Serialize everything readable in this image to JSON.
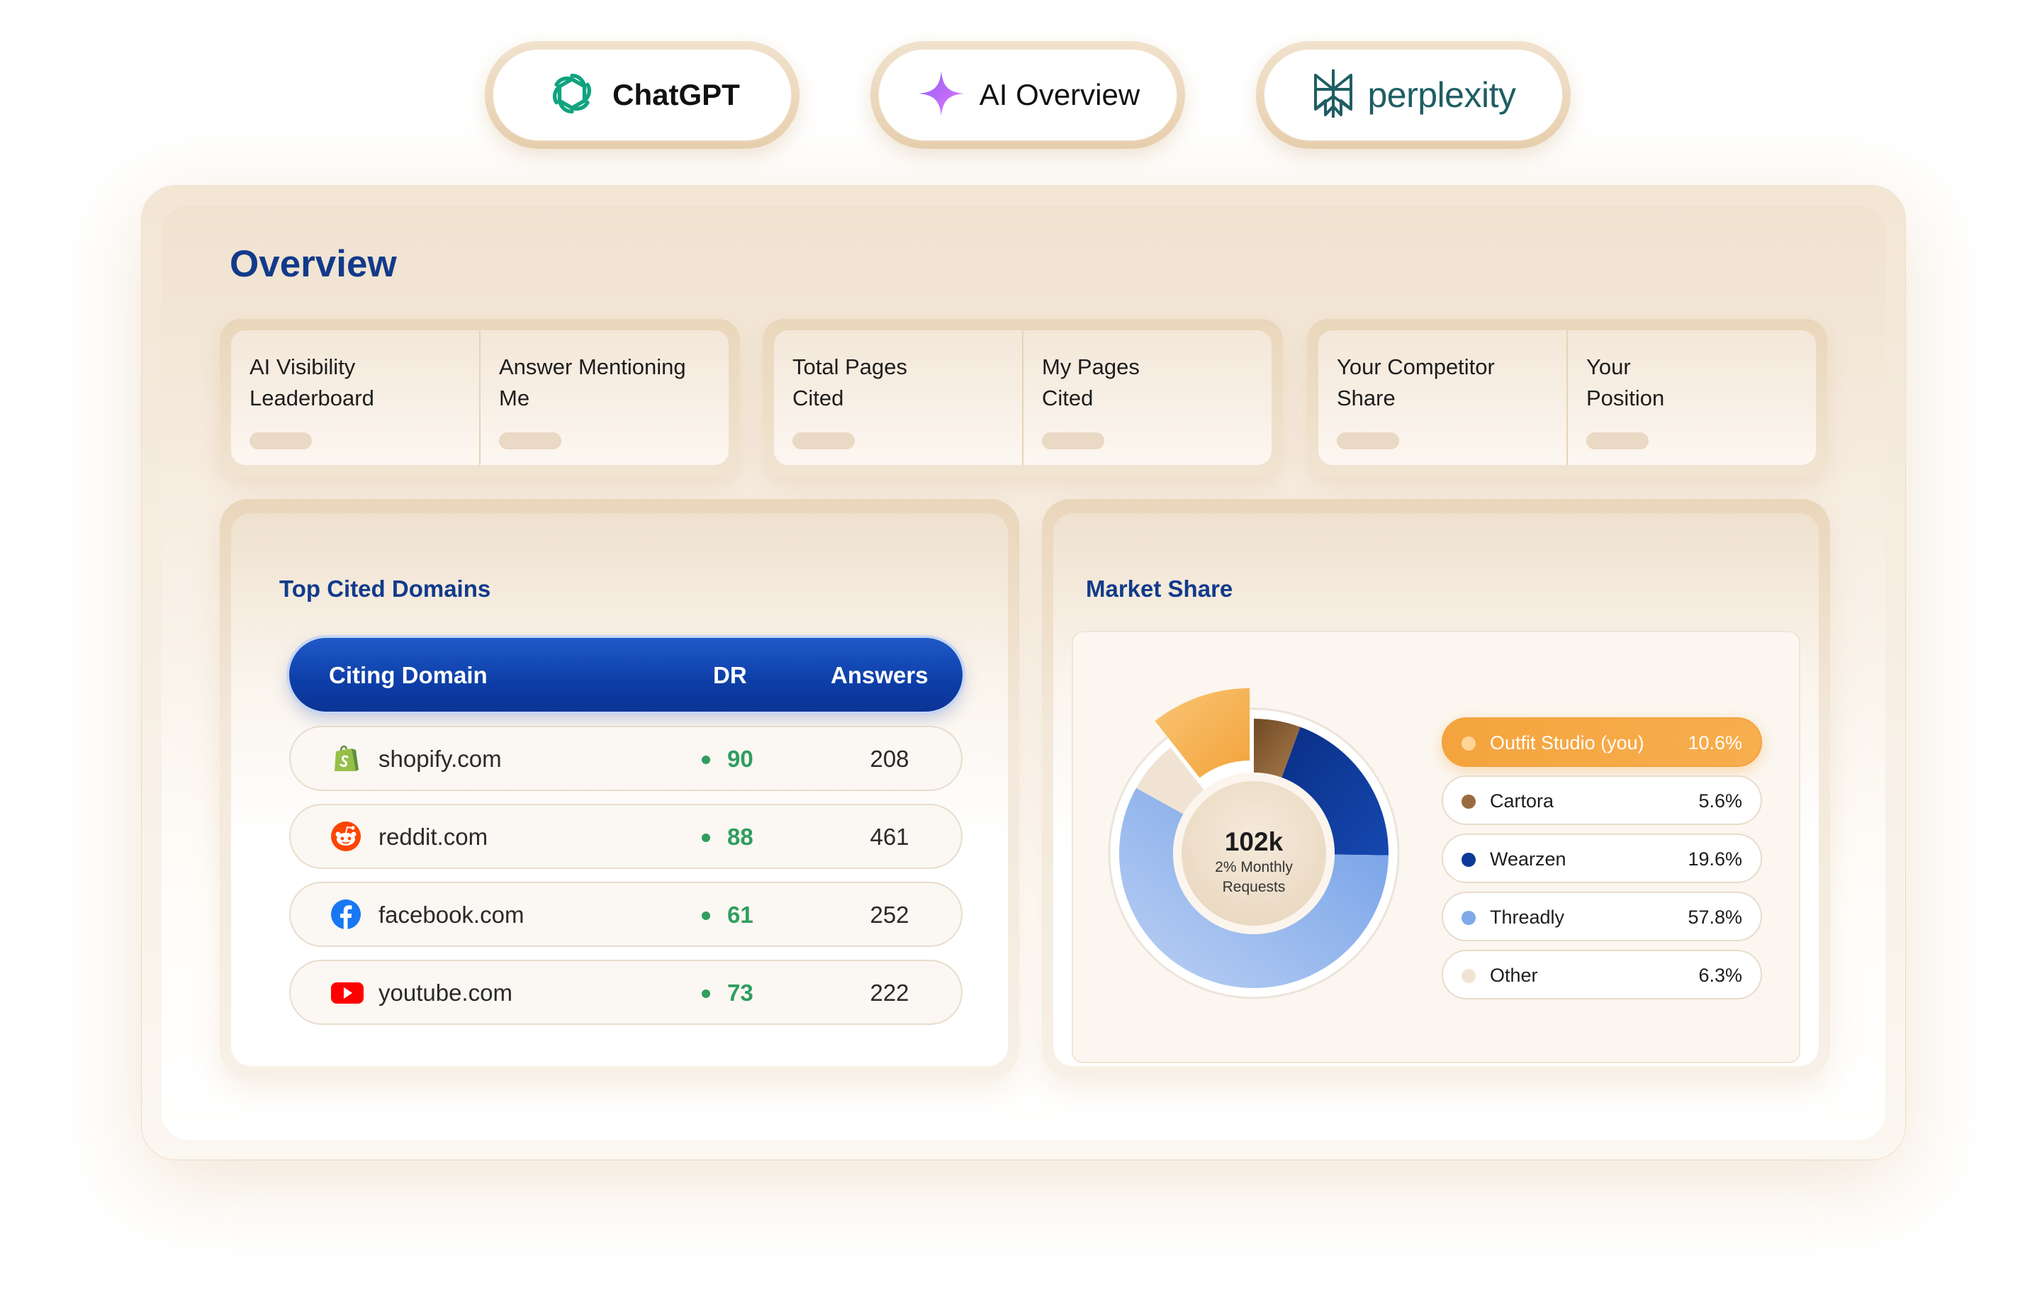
{
  "brands": [
    {
      "label": "ChatGPT",
      "icon": "openai-icon"
    },
    {
      "label": "AI Overview",
      "icon": "sparkle-icon"
    },
    {
      "label": "perplexity",
      "icon": "perplexity-icon"
    }
  ],
  "overview": {
    "title": "Overview",
    "stats": [
      {
        "label": "AI Visibility\nLeaderboard"
      },
      {
        "label": "Answer Mentioning\nMe"
      },
      {
        "label": "Total Pages\nCited"
      },
      {
        "label": "My Pages\nCited"
      },
      {
        "label": "Your Competitor\nShare"
      },
      {
        "label": "Your\nPosition"
      }
    ]
  },
  "top_cited": {
    "title": "Top Cited Domains",
    "columns": {
      "domain": "Citing Domain",
      "dr": "DR",
      "answers": "Answers"
    },
    "rows": [
      {
        "domain": "shopify.com",
        "dr": "90",
        "answers": "208",
        "icon": "shopify-icon"
      },
      {
        "domain": "reddit.com",
        "dr": "88",
        "answers": "461",
        "icon": "reddit-icon"
      },
      {
        "domain": "facebook.com",
        "dr": "61",
        "answers": "252",
        "icon": "facebook-icon"
      },
      {
        "domain": "youtube.com",
        "dr": "73",
        "answers": "222",
        "icon": "youtube-icon"
      }
    ]
  },
  "market_share": {
    "title": "Market Share",
    "center_value": "102k",
    "center_sub1": "2% Monthly",
    "center_sub2": "Requests",
    "legend": [
      {
        "name": "Outfit Studio (you)",
        "value": "10.6%",
        "color": "#f4a43d"
      },
      {
        "name": "Cartora",
        "value": "5.6%",
        "color": "#9a6b3f"
      },
      {
        "name": "Wearzen",
        "value": "19.6%",
        "color": "#0b3a98"
      },
      {
        "name": "Threadly",
        "value": "57.8%",
        "color": "#7fa9e8"
      },
      {
        "name": "Other",
        "value": "6.3%",
        "color": "#f1e3d3"
      }
    ]
  },
  "chart_data": {
    "type": "pie",
    "categories": [
      "Outfit Studio (you)",
      "Cartora",
      "Wearzen",
      "Threadly",
      "Other"
    ],
    "values": [
      10.6,
      5.6,
      19.6,
      57.8,
      6.3
    ],
    "title": "Market Share"
  }
}
